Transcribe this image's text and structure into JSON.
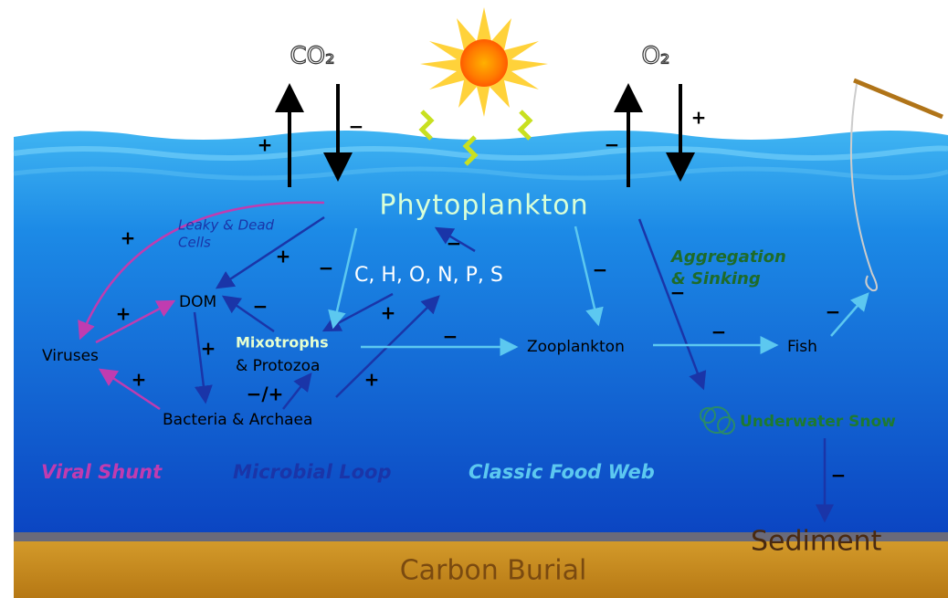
{
  "gases": {
    "co2": "CO₂",
    "o2": "O₂"
  },
  "nodes": {
    "phytoplankton": "Phytoplankton",
    "leaky_dead_cells": [
      "Leaky & Dead",
      "Cells"
    ],
    "aggregation_sinking": [
      "Aggregation",
      "& Sinking"
    ],
    "elements": "C, H, O, N, P, S",
    "dom": "DOM",
    "viruses": "Viruses",
    "mixotrophs": "Mixotrophs",
    "protozoa": "& Protozoa",
    "zooplankton": "Zooplankton",
    "fish": "Fish",
    "bacteria_archaea": "Bacteria & Archaea",
    "underwater_snow": "Underwater Snow",
    "sediment": "Sediment"
  },
  "pathways": {
    "viral_shunt": "Viral Shunt",
    "microbial_loop": "Microbial Loop",
    "classic_food_web": "Classic Food Web"
  },
  "footer": "Carbon Burial",
  "edge_signs": [
    "+",
    "−",
    "−",
    "+",
    "+",
    "+",
    "−",
    "−",
    "−",
    "−",
    "+",
    "−",
    "+",
    "+",
    "−",
    "−",
    "−",
    "+",
    "−/+",
    "+",
    "−"
  ]
}
